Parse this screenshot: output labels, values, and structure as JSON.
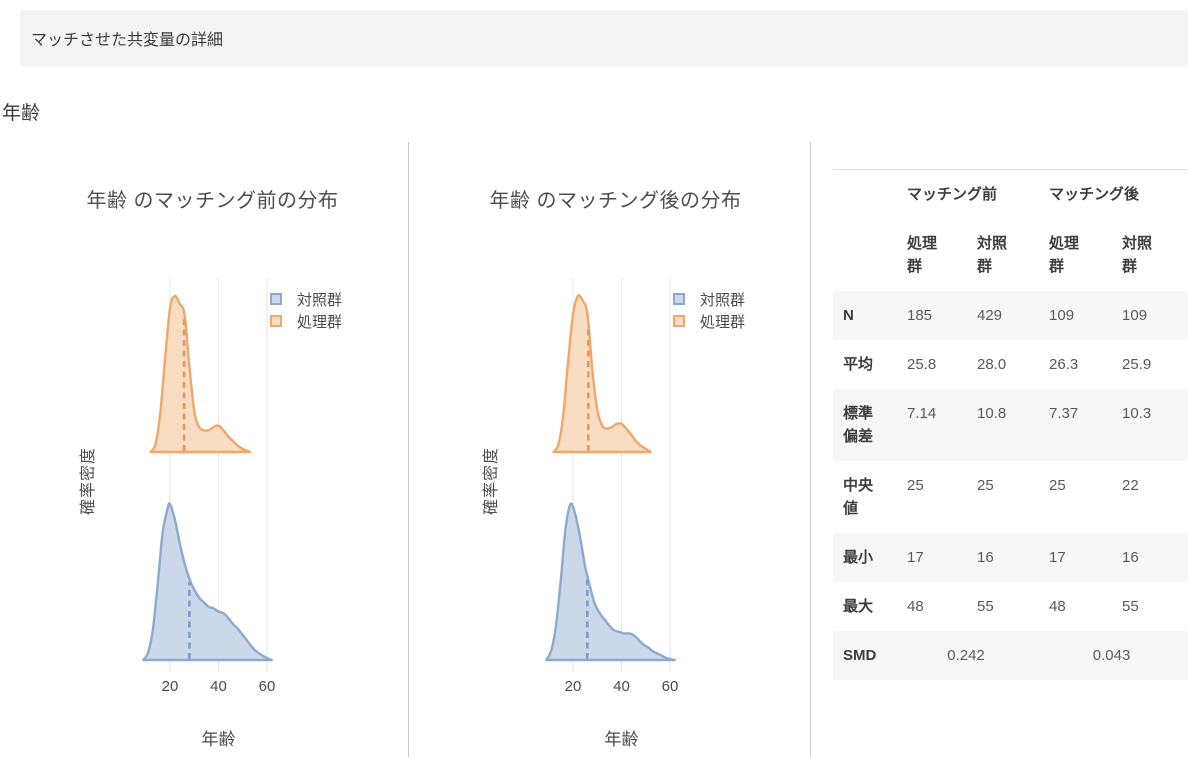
{
  "header": {
    "title": "マッチさせた共変量の詳細"
  },
  "section": {
    "title": "年齢"
  },
  "colors": {
    "control_stroke": "#8FA9CE",
    "control_fill": "#CBD8EA",
    "control_mean": "#7F9CC5",
    "treated_stroke": "#EFA76A",
    "treated_fill": "#F9DDC3",
    "treated_mean": "#E39A5F",
    "grid": "#E4E4E4",
    "divider": "#C9C9C9"
  },
  "chart_data": [
    {
      "type": "area",
      "title": "年齢 のマッチング前の分布",
      "xlabel": "年齢",
      "ylabel": "確率密度",
      "xticks": [
        20,
        40,
        60
      ],
      "xlim": [
        8,
        65
      ],
      "grid": "vertical",
      "legend_position": "upper-right",
      "legend": [
        {
          "key": "control",
          "label": "対照群"
        },
        {
          "key": "treated",
          "label": "処理群"
        }
      ],
      "series": [
        {
          "key": "treated",
          "name": "処理群",
          "mean": 25.8,
          "points": [
            [
              12,
              0
            ],
            [
              14,
              0.05
            ],
            [
              16,
              0.25
            ],
            [
              18,
              0.6
            ],
            [
              20,
              0.92
            ],
            [
              22,
              1
            ],
            [
              24,
              0.95
            ],
            [
              26,
              0.88
            ],
            [
              28,
              0.55
            ],
            [
              30,
              0.26
            ],
            [
              32,
              0.16
            ],
            [
              34,
              0.14
            ],
            [
              36,
              0.14
            ],
            [
              38,
              0.16
            ],
            [
              40,
              0.17
            ],
            [
              42,
              0.14
            ],
            [
              44,
              0.1
            ],
            [
              46,
              0.07
            ],
            [
              48,
              0.04
            ],
            [
              50,
              0.02
            ],
            [
              53,
              0
            ]
          ]
        },
        {
          "key": "control",
          "name": "対照群",
          "mean": 28.0,
          "points": [
            [
              9,
              0
            ],
            [
              11,
              0.05
            ],
            [
              13,
              0.2
            ],
            [
              15,
              0.5
            ],
            [
              17,
              0.82
            ],
            [
              19,
              0.97
            ],
            [
              20,
              1
            ],
            [
              22,
              0.9
            ],
            [
              24,
              0.75
            ],
            [
              26,
              0.62
            ],
            [
              28,
              0.52
            ],
            [
              30,
              0.45
            ],
            [
              32,
              0.4
            ],
            [
              34,
              0.37
            ],
            [
              36,
              0.34
            ],
            [
              38,
              0.33
            ],
            [
              40,
              0.31
            ],
            [
              42,
              0.3
            ],
            [
              44,
              0.27
            ],
            [
              46,
              0.23
            ],
            [
              48,
              0.2
            ],
            [
              50,
              0.16
            ],
            [
              52,
              0.12
            ],
            [
              54,
              0.08
            ],
            [
              56,
              0.05
            ],
            [
              58,
              0.03
            ],
            [
              60,
              0.012
            ],
            [
              62,
              0
            ]
          ]
        }
      ]
    },
    {
      "type": "area",
      "title": "年齢 のマッチング後の分布",
      "xlabel": "年齢",
      "ylabel": "確率密度",
      "xticks": [
        20,
        40,
        60
      ],
      "xlim": [
        8,
        65
      ],
      "grid": "vertical",
      "legend_position": "upper-right",
      "legend": [
        {
          "key": "control",
          "label": "対照群"
        },
        {
          "key": "treated",
          "label": "処理群"
        }
      ],
      "series": [
        {
          "key": "treated",
          "name": "処理群",
          "mean": 26.3,
          "points": [
            [
              12,
              0
            ],
            [
              14,
              0.05
            ],
            [
              16,
              0.24
            ],
            [
              18,
              0.58
            ],
            [
              20,
              0.88
            ],
            [
              22,
              1
            ],
            [
              24,
              0.97
            ],
            [
              26,
              0.88
            ],
            [
              28,
              0.52
            ],
            [
              30,
              0.27
            ],
            [
              32,
              0.17
            ],
            [
              34,
              0.15
            ],
            [
              36,
              0.16
            ],
            [
              38,
              0.18
            ],
            [
              40,
              0.18
            ],
            [
              42,
              0.15
            ],
            [
              44,
              0.11
            ],
            [
              46,
              0.07
            ],
            [
              48,
              0.04
            ],
            [
              50,
              0.02
            ],
            [
              52,
              0
            ]
          ]
        },
        {
          "key": "control",
          "name": "対照群",
          "mean": 25.9,
          "points": [
            [
              9,
              0
            ],
            [
              11,
              0.06
            ],
            [
              13,
              0.22
            ],
            [
              15,
              0.52
            ],
            [
              17,
              0.85
            ],
            [
              19,
              1
            ],
            [
              21,
              0.93
            ],
            [
              23,
              0.78
            ],
            [
              25,
              0.6
            ],
            [
              27,
              0.47
            ],
            [
              29,
              0.36
            ],
            [
              31,
              0.3
            ],
            [
              33,
              0.26
            ],
            [
              35,
              0.22
            ],
            [
              37,
              0.19
            ],
            [
              39,
              0.18
            ],
            [
              41,
              0.17
            ],
            [
              43,
              0.17
            ],
            [
              45,
              0.16
            ],
            [
              47,
              0.13
            ],
            [
              49,
              0.1
            ],
            [
              51,
              0.08
            ],
            [
              53,
              0.055
            ],
            [
              55,
              0.04
            ],
            [
              57,
              0.025
            ],
            [
              59,
              0.01
            ],
            [
              62,
              0
            ]
          ]
        }
      ]
    }
  ],
  "table": {
    "col_groups": [
      "マッチング前",
      "マッチング後"
    ],
    "sub_headers": [
      "処理群",
      "対照群",
      "処理群",
      "対照群"
    ],
    "rows": [
      {
        "label": "N",
        "values": [
          "185",
          "429",
          "109",
          "109"
        ]
      },
      {
        "label": "平均",
        "values": [
          "25.8",
          "28.0",
          "26.3",
          "25.9"
        ]
      },
      {
        "label": "標準偏差",
        "values": [
          "7.14",
          "10.8",
          "7.37",
          "10.3"
        ]
      },
      {
        "label": "中央値",
        "values": [
          "25",
          "25",
          "25",
          "22"
        ]
      },
      {
        "label": "最小",
        "values": [
          "17",
          "16",
          "17",
          "16"
        ]
      },
      {
        "label": "最大",
        "values": [
          "48",
          "55",
          "48",
          "55"
        ]
      }
    ],
    "smd_row": {
      "label": "SMD",
      "values": [
        "0.242",
        "0.043"
      ]
    }
  }
}
